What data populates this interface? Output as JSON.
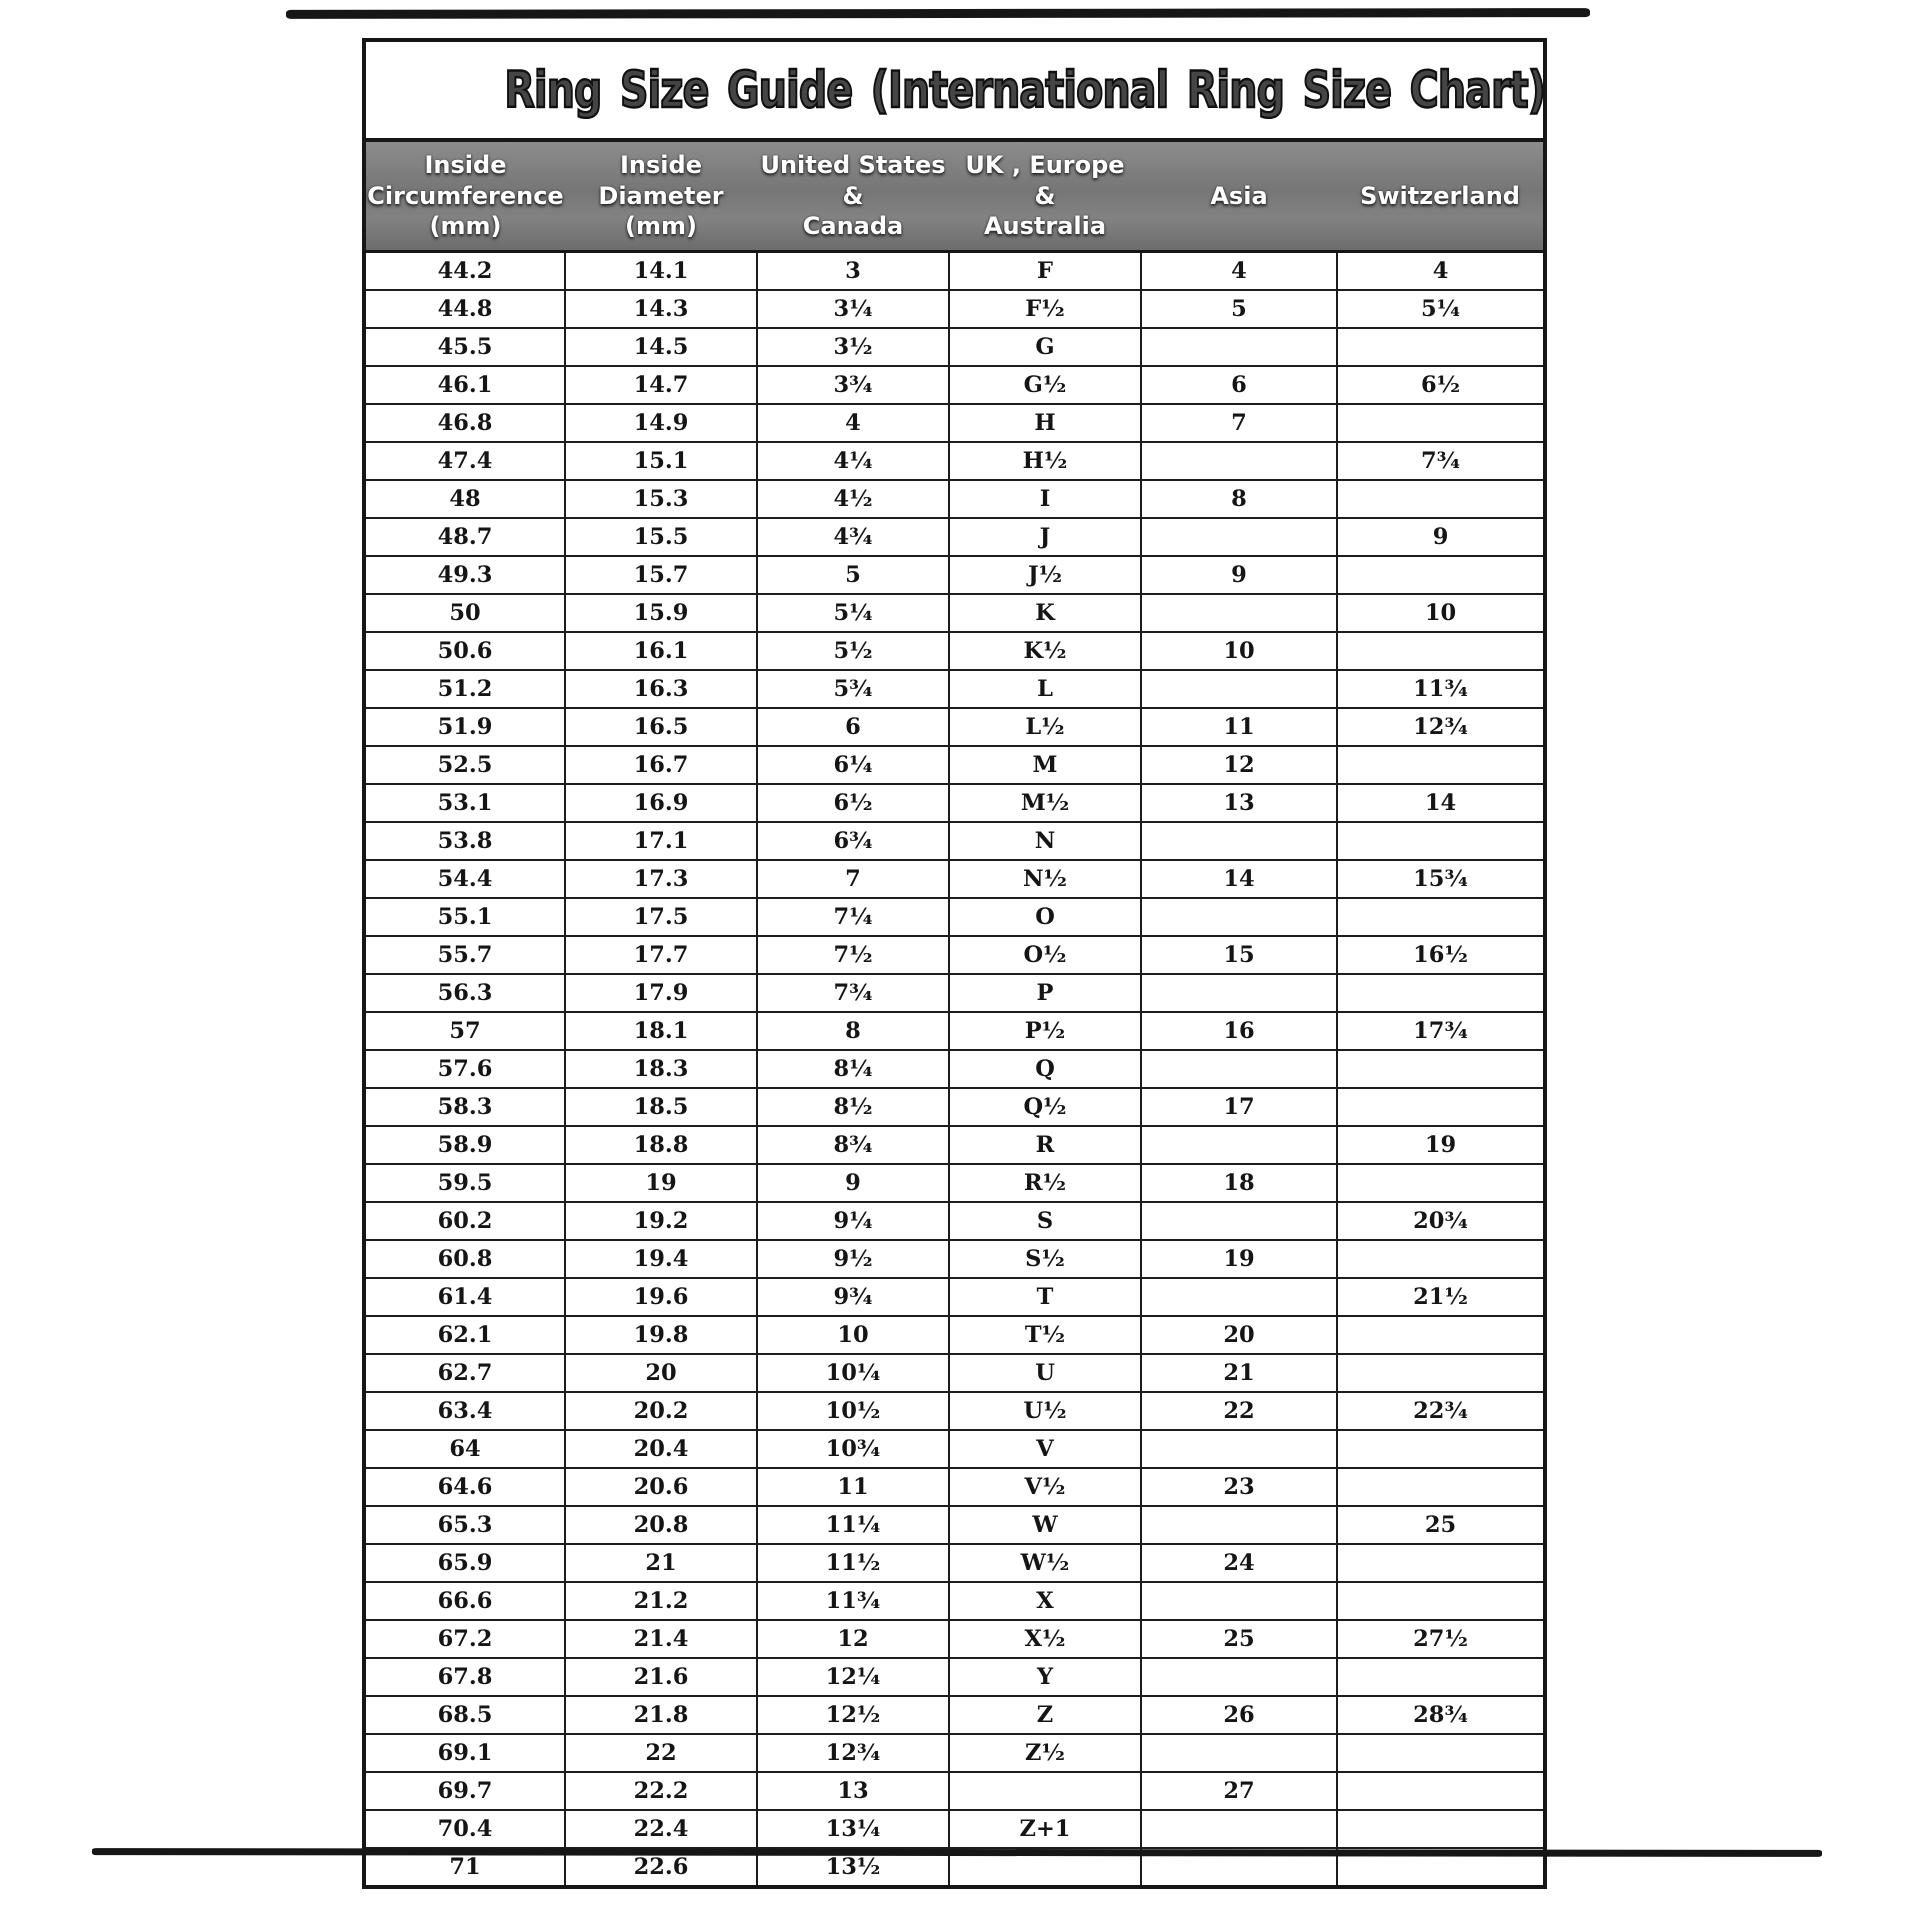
{
  "document": {
    "title": "Ring Size Guide (International Ring Size Chart)"
  },
  "table": {
    "columns": [
      {
        "key": "inside_circumference_mm",
        "label": "Inside\nCircumference\n(mm)"
      },
      {
        "key": "inside_diameter_mm",
        "label": "Inside\nDiameter\n(mm)"
      },
      {
        "key": "us_canada",
        "label": "United States\n&\nCanada"
      },
      {
        "key": "uk_europe_australia",
        "label": "UK , Europe\n&\nAustralia"
      },
      {
        "key": "asia",
        "label": "Asia"
      },
      {
        "key": "switzerland",
        "label": "Switzerland"
      }
    ],
    "rows": [
      [
        "44.2",
        "14.1",
        "3",
        "F",
        "4",
        "4"
      ],
      [
        "44.8",
        "14.3",
        "3¼",
        "F½",
        "5",
        "5¼"
      ],
      [
        "45.5",
        "14.5",
        "3½",
        "G",
        "",
        ""
      ],
      [
        "46.1",
        "14.7",
        "3¾",
        "G½",
        "6",
        "6½"
      ],
      [
        "46.8",
        "14.9",
        "4",
        "H",
        "7",
        ""
      ],
      [
        "47.4",
        "15.1",
        "4¼",
        "H½",
        "",
        "7¾"
      ],
      [
        "48",
        "15.3",
        "4½",
        "I",
        "8",
        ""
      ],
      [
        "48.7",
        "15.5",
        "4¾",
        "J",
        "",
        "9"
      ],
      [
        "49.3",
        "15.7",
        "5",
        "J½",
        "9",
        ""
      ],
      [
        "50",
        "15.9",
        "5¼",
        "K",
        "",
        "10"
      ],
      [
        "50.6",
        "16.1",
        "5½",
        "K½",
        "10",
        ""
      ],
      [
        "51.2",
        "16.3",
        "5¾",
        "L",
        "",
        "11¾"
      ],
      [
        "51.9",
        "16.5",
        "6",
        "L½",
        "11",
        "12¾"
      ],
      [
        "52.5",
        "16.7",
        "6¼",
        "M",
        "12",
        ""
      ],
      [
        "53.1",
        "16.9",
        "6½",
        "M½",
        "13",
        "14"
      ],
      [
        "53.8",
        "17.1",
        "6¾",
        "N",
        "",
        ""
      ],
      [
        "54.4",
        "17.3",
        "7",
        "N½",
        "14",
        "15¾"
      ],
      [
        "55.1",
        "17.5",
        "7¼",
        "O",
        "",
        ""
      ],
      [
        "55.7",
        "17.7",
        "7½",
        "O½",
        "15",
        "16½"
      ],
      [
        "56.3",
        "17.9",
        "7¾",
        "P",
        "",
        ""
      ],
      [
        "57",
        "18.1",
        "8",
        "P½",
        "16",
        "17¾"
      ],
      [
        "57.6",
        "18.3",
        "8¼",
        "Q",
        "",
        ""
      ],
      [
        "58.3",
        "18.5",
        "8½",
        "Q½",
        "17",
        ""
      ],
      [
        "58.9",
        "18.8",
        "8¾",
        "R",
        "",
        "19"
      ],
      [
        "59.5",
        "19",
        "9",
        "R½",
        "18",
        ""
      ],
      [
        "60.2",
        "19.2",
        "9¼",
        "S",
        "",
        "20¾"
      ],
      [
        "60.8",
        "19.4",
        "9½",
        "S½",
        "19",
        ""
      ],
      [
        "61.4",
        "19.6",
        "9¾",
        "T",
        "",
        "21½"
      ],
      [
        "62.1",
        "19.8",
        "10",
        "T½",
        "20",
        ""
      ],
      [
        "62.7",
        "20",
        "10¼",
        "U",
        "21",
        ""
      ],
      [
        "63.4",
        "20.2",
        "10½",
        "U½",
        "22",
        "22¾"
      ],
      [
        "64",
        "20.4",
        "10¾",
        "V",
        "",
        ""
      ],
      [
        "64.6",
        "20.6",
        "11",
        "V½",
        "23",
        ""
      ],
      [
        "65.3",
        "20.8",
        "11¼",
        "W",
        "",
        "25"
      ],
      [
        "65.9",
        "21",
        "11½",
        "W½",
        "24",
        ""
      ],
      [
        "66.6",
        "21.2",
        "11¾",
        "X",
        "",
        ""
      ],
      [
        "67.2",
        "21.4",
        "12",
        "X½",
        "25",
        "27½"
      ],
      [
        "67.8",
        "21.6",
        "12¼",
        "Y",
        "",
        ""
      ],
      [
        "68.5",
        "21.8",
        "12½",
        "Z",
        "26",
        "28¾"
      ],
      [
        "69.1",
        "22",
        "12¾",
        "Z½",
        "",
        ""
      ],
      [
        "69.7",
        "22.2",
        "13",
        "",
        "27",
        ""
      ],
      [
        "70.4",
        "22.4",
        "13¼",
        "Z+1",
        "",
        ""
      ],
      [
        "71",
        "22.6",
        "13½",
        "",
        "",
        ""
      ]
    ]
  },
  "colors": {
    "line": "#161616",
    "header_band": "#7c7c7c",
    "paper": "#ffffff",
    "ink": "#151515"
  }
}
